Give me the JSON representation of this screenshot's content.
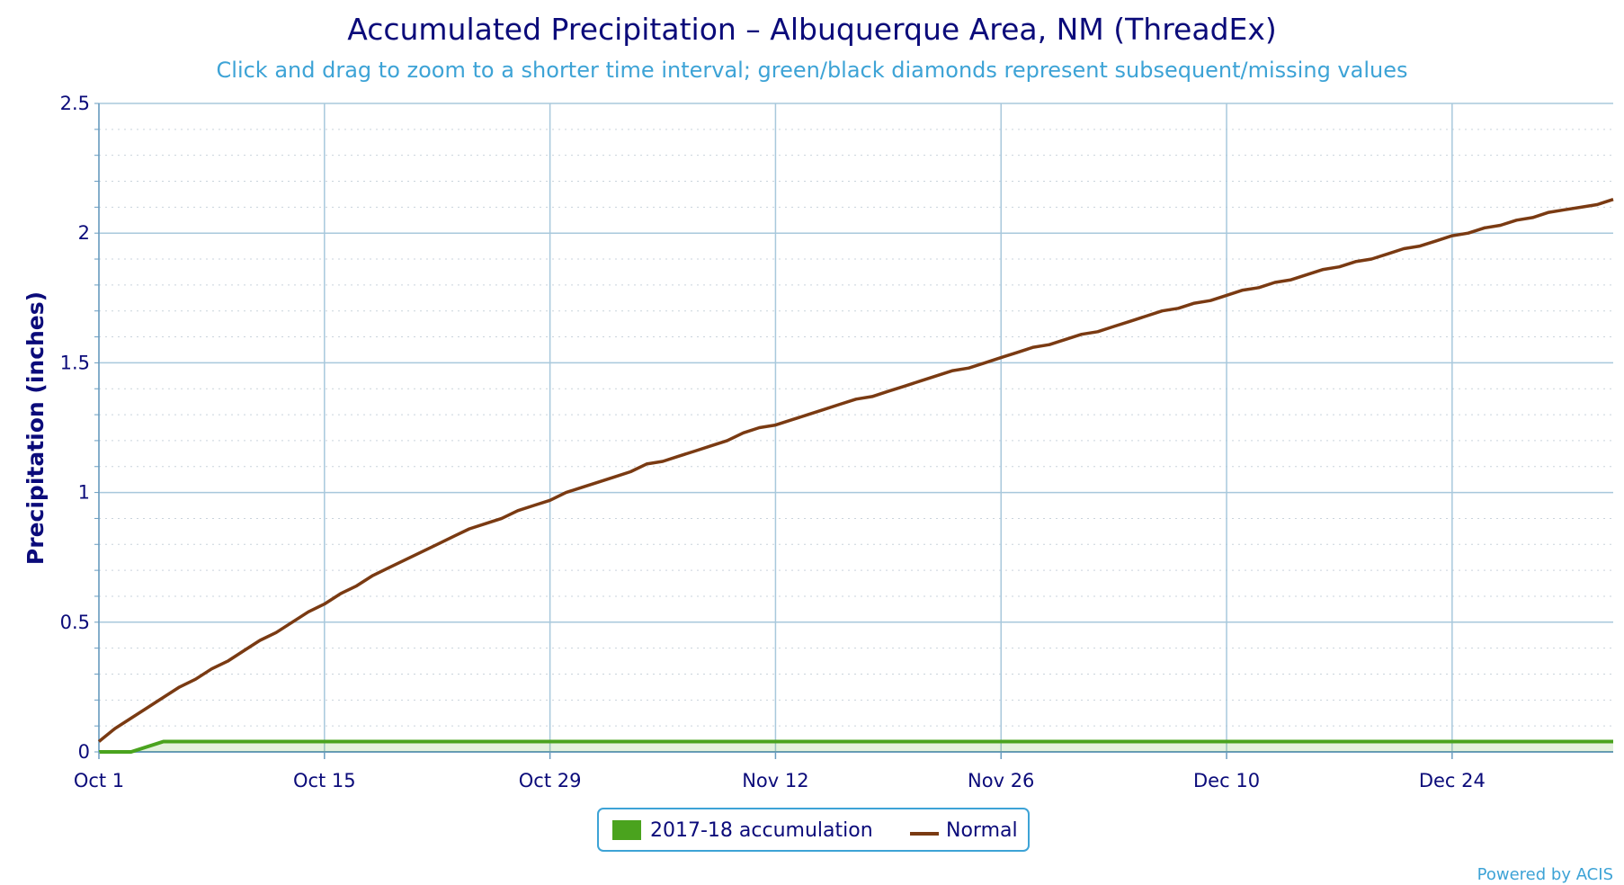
{
  "chart_data": {
    "type": "line",
    "title": "Accumulated Precipitation – Albuquerque Area, NM (ThreadEx)",
    "subtitle": "Click and drag to zoom to a shorter time interval; green/black diamonds represent subsequent/missing values",
    "ylabel": "Precipitation (inches)",
    "xlabel": "",
    "ylim": [
      0,
      2.5
    ],
    "yticks": [
      "0",
      "0.5",
      "1",
      "1.5",
      "2",
      "2.5"
    ],
    "x_day_range": [
      0,
      94
    ],
    "xticks": [
      {
        "label": "Oct 1",
        "day": 0
      },
      {
        "label": "Oct 15",
        "day": 14
      },
      {
        "label": "Oct 29",
        "day": 28
      },
      {
        "label": "Nov 12",
        "day": 42
      },
      {
        "label": "Nov 26",
        "day": 56
      },
      {
        "label": "Dec 10",
        "day": 70
      },
      {
        "label": "Dec 24",
        "day": 84
      }
    ],
    "grid": true,
    "legend_position": "bottom-center",
    "series": [
      {
        "name": "2017-18 accumulation",
        "type": "area",
        "color": "#4aa31e",
        "points": [
          [
            0,
            0
          ],
          [
            2,
            0
          ],
          [
            4,
            0.04
          ],
          [
            94,
            0.04
          ]
        ]
      },
      {
        "name": "Normal",
        "type": "line",
        "color": "#7a3a12",
        "points": [
          [
            0,
            0.04
          ],
          [
            1,
            0.09
          ],
          [
            2,
            0.13
          ],
          [
            3,
            0.17
          ],
          [
            4,
            0.21
          ],
          [
            5,
            0.25
          ],
          [
            6,
            0.28
          ],
          [
            7,
            0.32
          ],
          [
            8,
            0.35
          ],
          [
            9,
            0.39
          ],
          [
            10,
            0.43
          ],
          [
            11,
            0.46
          ],
          [
            12,
            0.5
          ],
          [
            13,
            0.54
          ],
          [
            14,
            0.57
          ],
          [
            15,
            0.61
          ],
          [
            16,
            0.64
          ],
          [
            17,
            0.68
          ],
          [
            18,
            0.71
          ],
          [
            19,
            0.74
          ],
          [
            20,
            0.77
          ],
          [
            21,
            0.8
          ],
          [
            22,
            0.83
          ],
          [
            23,
            0.86
          ],
          [
            24,
            0.88
          ],
          [
            25,
            0.9
          ],
          [
            26,
            0.93
          ],
          [
            27,
            0.95
          ],
          [
            28,
            0.97
          ],
          [
            29,
            1.0
          ],
          [
            30,
            1.02
          ],
          [
            31,
            1.04
          ],
          [
            32,
            1.06
          ],
          [
            33,
            1.08
          ],
          [
            34,
            1.11
          ],
          [
            35,
            1.12
          ],
          [
            36,
            1.14
          ],
          [
            37,
            1.16
          ],
          [
            38,
            1.18
          ],
          [
            39,
            1.2
          ],
          [
            40,
            1.23
          ],
          [
            41,
            1.25
          ],
          [
            42,
            1.26
          ],
          [
            43,
            1.28
          ],
          [
            44,
            1.3
          ],
          [
            45,
            1.32
          ],
          [
            46,
            1.34
          ],
          [
            47,
            1.36
          ],
          [
            48,
            1.37
          ],
          [
            49,
            1.39
          ],
          [
            50,
            1.41
          ],
          [
            51,
            1.43
          ],
          [
            52,
            1.45
          ],
          [
            53,
            1.47
          ],
          [
            54,
            1.48
          ],
          [
            55,
            1.5
          ],
          [
            56,
            1.52
          ],
          [
            57,
            1.54
          ],
          [
            58,
            1.56
          ],
          [
            59,
            1.57
          ],
          [
            60,
            1.59
          ],
          [
            61,
            1.61
          ],
          [
            62,
            1.62
          ],
          [
            63,
            1.64
          ],
          [
            64,
            1.66
          ],
          [
            65,
            1.68
          ],
          [
            66,
            1.7
          ],
          [
            67,
            1.71
          ],
          [
            68,
            1.73
          ],
          [
            69,
            1.74
          ],
          [
            70,
            1.76
          ],
          [
            71,
            1.78
          ],
          [
            72,
            1.79
          ],
          [
            73,
            1.81
          ],
          [
            74,
            1.82
          ],
          [
            75,
            1.84
          ],
          [
            76,
            1.86
          ],
          [
            77,
            1.87
          ],
          [
            78,
            1.89
          ],
          [
            79,
            1.9
          ],
          [
            80,
            1.92
          ],
          [
            81,
            1.94
          ],
          [
            82,
            1.95
          ],
          [
            83,
            1.97
          ],
          [
            84,
            1.99
          ],
          [
            85,
            2.0
          ],
          [
            86,
            2.02
          ],
          [
            87,
            2.03
          ],
          [
            88,
            2.05
          ],
          [
            89,
            2.06
          ],
          [
            90,
            2.08
          ],
          [
            91,
            2.09
          ],
          [
            92,
            2.1
          ],
          [
            93,
            2.11
          ],
          [
            94,
            2.13
          ]
        ]
      }
    ]
  },
  "credit": "Powered by ACIS"
}
